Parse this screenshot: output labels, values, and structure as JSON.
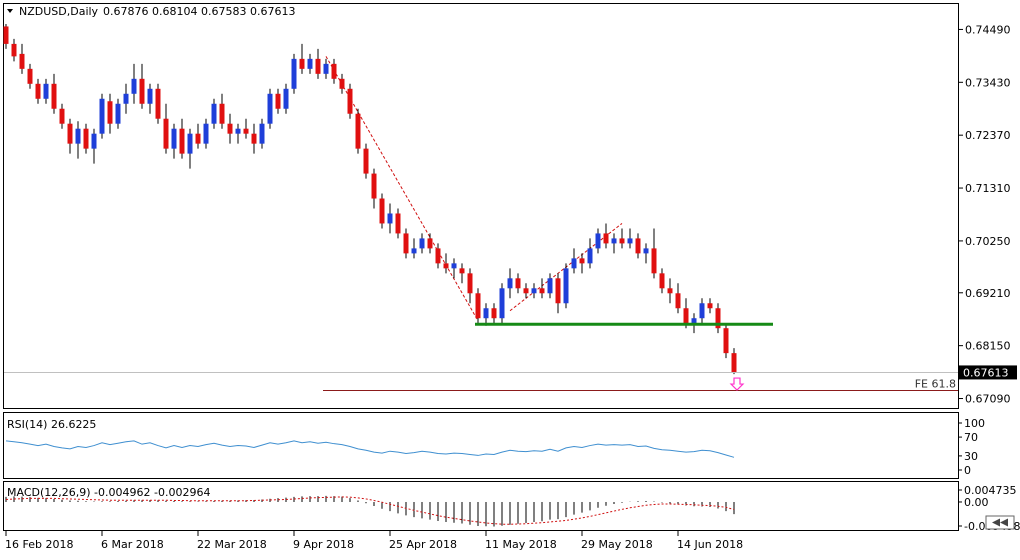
{
  "header": {
    "symbol": "NZDUSD,Daily",
    "ohlc": "0.67876 0.68104 0.67583 0.67613"
  },
  "colors": {
    "bull": "#1f3fd9",
    "bear": "#e01010",
    "wick": "#000000",
    "support": "#168a16",
    "trendline": "#d01010",
    "fe_line": "#8b1a1a",
    "rsi_line": "#3f8fd0",
    "macd_hist": "#000000",
    "macd_signal": "#d01010",
    "arrow": "#ff33cc"
  },
  "price_axis": {
    "ticks": [
      "0.74490",
      "0.73430",
      "0.72370",
      "0.71310",
      "0.70250",
      "0.69210",
      "0.68150",
      "0.67090"
    ],
    "last_price": "0.67613"
  },
  "date_axis": [
    "16 Feb 2018",
    "6 Mar 2018",
    "22 Mar 2018",
    "9 Apr 2018",
    "25 Apr 2018",
    "11 May 2018",
    "29 May 2018",
    "14 Jun 2018"
  ],
  "annotations": {
    "fe_label": "FE 61.8"
  },
  "rsi": {
    "label": "RSI(14) 26.6225",
    "levels": [
      "100",
      "70",
      "30",
      "0"
    ]
  },
  "macd": {
    "label": "MACD(12,26,9) -0.004962 -0.002964",
    "ticks": [
      "0.004735",
      "0.00",
      "-0.009498"
    ]
  },
  "chart_data": {
    "type": "candlestick",
    "symbol": "NZDUSD",
    "timeframe": "Daily",
    "ylim": [
      0.669,
      0.75
    ],
    "support_level": 0.6858,
    "fe_61_8_level": 0.6725,
    "x_tick_labels": [
      "16 Feb 2018",
      "6 Mar 2018",
      "22 Mar 2018",
      "9 Apr 2018",
      "25 Apr 2018",
      "11 May 2018",
      "29 May 2018",
      "14 Jun 2018"
    ],
    "candles": [
      [
        0.7455,
        0.746,
        0.741,
        0.742
      ],
      [
        0.742,
        0.743,
        0.7385,
        0.7395
      ],
      [
        0.74,
        0.742,
        0.736,
        0.737
      ],
      [
        0.737,
        0.738,
        0.733,
        0.734
      ],
      [
        0.734,
        0.735,
        0.73,
        0.731
      ],
      [
        0.731,
        0.735,
        0.73,
        0.734
      ],
      [
        0.734,
        0.736,
        0.728,
        0.729
      ],
      [
        0.729,
        0.73,
        0.725,
        0.726
      ],
      [
        0.726,
        0.727,
        0.72,
        0.722
      ],
      [
        0.722,
        0.7265,
        0.719,
        0.725
      ],
      [
        0.725,
        0.726,
        0.72,
        0.721
      ],
      [
        0.721,
        0.725,
        0.718,
        0.724
      ],
      [
        0.724,
        0.732,
        0.723,
        0.731
      ],
      [
        0.7305,
        0.732,
        0.724,
        0.726
      ],
      [
        0.726,
        0.731,
        0.725,
        0.73
      ],
      [
        0.73,
        0.734,
        0.728,
        0.732
      ],
      [
        0.732,
        0.738,
        0.73,
        0.735
      ],
      [
        0.735,
        0.738,
        0.729,
        0.73
      ],
      [
        0.73,
        0.734,
        0.728,
        0.733
      ],
      [
        0.733,
        0.734,
        0.726,
        0.727
      ],
      [
        0.727,
        0.73,
        0.72,
        0.721
      ],
      [
        0.721,
        0.726,
        0.719,
        0.725
      ],
      [
        0.725,
        0.727,
        0.719,
        0.72
      ],
      [
        0.72,
        0.725,
        0.717,
        0.724
      ],
      [
        0.724,
        0.726,
        0.721,
        0.722
      ],
      [
        0.722,
        0.727,
        0.721,
        0.726
      ],
      [
        0.726,
        0.731,
        0.725,
        0.73
      ],
      [
        0.73,
        0.732,
        0.725,
        0.726
      ],
      [
        0.726,
        0.728,
        0.722,
        0.724
      ],
      [
        0.724,
        0.726,
        0.722,
        0.725
      ],
      [
        0.725,
        0.727,
        0.723,
        0.724
      ],
      [
        0.724,
        0.726,
        0.72,
        0.722
      ],
      [
        0.722,
        0.727,
        0.721,
        0.726
      ],
      [
        0.726,
        0.733,
        0.725,
        0.732
      ],
      [
        0.732,
        0.733,
        0.728,
        0.729
      ],
      [
        0.729,
        0.734,
        0.728,
        0.733
      ],
      [
        0.733,
        0.74,
        0.732,
        0.739
      ],
      [
        0.739,
        0.742,
        0.736,
        0.737
      ],
      [
        0.737,
        0.74,
        0.736,
        0.739
      ],
      [
        0.739,
        0.741,
        0.735,
        0.736
      ],
      [
        0.736,
        0.739,
        0.735,
        0.738
      ],
      [
        0.738,
        0.739,
        0.734,
        0.735
      ],
      [
        0.735,
        0.736,
        0.732,
        0.733
      ],
      [
        0.733,
        0.734,
        0.727,
        0.728
      ],
      [
        0.728,
        0.729,
        0.72,
        0.721
      ],
      [
        0.721,
        0.722,
        0.715,
        0.716
      ],
      [
        0.716,
        0.717,
        0.709,
        0.711
      ],
      [
        0.711,
        0.712,
        0.705,
        0.706
      ],
      [
        0.706,
        0.71,
        0.704,
        0.708
      ],
      [
        0.708,
        0.709,
        0.703,
        0.704
      ],
      [
        0.704,
        0.705,
        0.699,
        0.7
      ],
      [
        0.7,
        0.703,
        0.699,
        0.701
      ],
      [
        0.701,
        0.704,
        0.7,
        0.703
      ],
      [
        0.703,
        0.704,
        0.7,
        0.701
      ],
      [
        0.701,
        0.702,
        0.697,
        0.698
      ],
      [
        0.698,
        0.7,
        0.696,
        0.697
      ],
      [
        0.697,
        0.699,
        0.695,
        0.698
      ],
      [
        0.697,
        0.698,
        0.694,
        0.696
      ],
      [
        0.696,
        0.697,
        0.69,
        0.692
      ],
      [
        0.692,
        0.693,
        0.686,
        0.687
      ],
      [
        0.687,
        0.69,
        0.6855,
        0.689
      ],
      [
        0.689,
        0.69,
        0.686,
        0.687
      ],
      [
        0.687,
        0.694,
        0.686,
        0.693
      ],
      [
        0.693,
        0.697,
        0.691,
        0.695
      ],
      [
        0.695,
        0.696,
        0.692,
        0.693
      ],
      [
        0.693,
        0.694,
        0.691,
        0.692
      ],
      [
        0.692,
        0.694,
        0.691,
        0.693
      ],
      [
        0.693,
        0.695,
        0.691,
        0.692
      ],
      [
        0.692,
        0.696,
        0.691,
        0.695
      ],
      [
        0.695,
        0.696,
        0.688,
        0.69
      ],
      [
        0.69,
        0.698,
        0.689,
        0.697
      ],
      [
        0.697,
        0.701,
        0.696,
        0.699
      ],
      [
        0.699,
        0.7,
        0.696,
        0.698
      ],
      [
        0.698,
        0.703,
        0.697,
        0.701
      ],
      [
        0.701,
        0.705,
        0.7,
        0.704
      ],
      [
        0.704,
        0.706,
        0.701,
        0.702
      ],
      [
        0.702,
        0.704,
        0.7,
        0.703
      ],
      [
        0.703,
        0.705,
        0.701,
        0.702
      ],
      [
        0.702,
        0.705,
        0.701,
        0.703
      ],
      [
        0.703,
        0.704,
        0.699,
        0.7
      ],
      [
        0.7,
        0.702,
        0.698,
        0.701
      ],
      [
        0.701,
        0.705,
        0.695,
        0.696
      ],
      [
        0.696,
        0.697,
        0.692,
        0.693
      ],
      [
        0.693,
        0.695,
        0.69,
        0.692
      ],
      [
        0.692,
        0.694,
        0.688,
        0.689
      ],
      [
        0.689,
        0.691,
        0.685,
        0.686
      ],
      [
        0.686,
        0.688,
        0.684,
        0.687
      ],
      [
        0.687,
        0.691,
        0.686,
        0.69
      ],
      [
        0.69,
        0.691,
        0.688,
        0.689
      ],
      [
        0.689,
        0.69,
        0.684,
        0.685
      ],
      [
        0.685,
        0.686,
        0.679,
        0.68
      ],
      [
        0.68,
        0.681,
        0.6758,
        0.6761
      ]
    ],
    "rsi": {
      "label": "RSI(14)",
      "value": 26.6225,
      "levels": [
        100,
        70,
        30,
        0
      ],
      "values": [
        62,
        60,
        58,
        55,
        52,
        55,
        50,
        47,
        45,
        50,
        48,
        52,
        58,
        54,
        57,
        60,
        62,
        55,
        58,
        52,
        47,
        52,
        48,
        52,
        50,
        54,
        57,
        53,
        50,
        52,
        51,
        48,
        53,
        58,
        55,
        58,
        62,
        58,
        60,
        57,
        59,
        56,
        54,
        50,
        45,
        42,
        38,
        36,
        40,
        38,
        35,
        37,
        40,
        38,
        35,
        34,
        36,
        35,
        33,
        31,
        34,
        33,
        38,
        42,
        40,
        39,
        41,
        40,
        44,
        40,
        47,
        50,
        48,
        52,
        55,
        53,
        54,
        53,
        54,
        50,
        51,
        46,
        43,
        42,
        40,
        38,
        39,
        42,
        41,
        37,
        32,
        27
      ]
    },
    "macd": {
      "label": "MACD(12,26,9)",
      "macd": -0.004962,
      "signal": -0.002964,
      "histogram": [
        0.002,
        0.0022,
        0.0021,
        0.0019,
        0.0016,
        0.0015,
        0.0012,
        0.0009,
        0.0006,
        0.0005,
        0.0003,
        0.0002,
        0.0003,
        0.0003,
        0.0004,
        0.0005,
        0.0007,
        0.0007,
        0.0008,
        0.0007,
        0.0005,
        0.0004,
        0.0003,
        0.0003,
        0.0002,
        0.0003,
        0.0004,
        0.0005,
        0.0005,
        0.0006,
        0.0007,
        0.0008,
        0.001,
        0.0013,
        0.0015,
        0.0017,
        0.002,
        0.0022,
        0.0023,
        0.0023,
        0.0024,
        0.0023,
        0.0021,
        0.0015,
        0.0006,
        -0.0005,
        -0.0016,
        -0.0027,
        -0.0036,
        -0.0045,
        -0.0053,
        -0.006,
        -0.0065,
        -0.007,
        -0.0075,
        -0.0079,
        -0.0082,
        -0.0085,
        -0.009,
        -0.0095,
        -0.0096,
        -0.0097,
        -0.0094,
        -0.009,
        -0.0086,
        -0.0083,
        -0.0079,
        -0.0076,
        -0.007,
        -0.0068,
        -0.006,
        -0.005,
        -0.0042,
        -0.0033,
        -0.0023,
        -0.0015,
        -0.0008,
        -0.0003,
        0.0001,
        0.0003,
        0.0004,
        0.0002,
        -0.0002,
        -0.0006,
        -0.001,
        -0.0014,
        -0.0017,
        -0.0018,
        -0.002,
        -0.0026,
        -0.0036,
        -0.0048
      ],
      "signal_line": [
        0.001,
        0.0012,
        0.0013,
        0.0014,
        0.0014,
        0.0014,
        0.0014,
        0.0013,
        0.0012,
        0.0011,
        0.001,
        0.0009,
        0.0008,
        0.0007,
        0.0007,
        0.0007,
        0.0007,
        0.0007,
        0.0007,
        0.0007,
        0.0007,
        0.0006,
        0.0006,
        0.0005,
        0.0005,
        0.0005,
        0.0005,
        0.0005,
        0.0005,
        0.0005,
        0.0005,
        0.0006,
        0.0007,
        0.0008,
        0.0009,
        0.001,
        0.0012,
        0.0014,
        0.0016,
        0.0017,
        0.0018,
        0.0019,
        0.002,
        0.0019,
        0.0016,
        0.0012,
        0.0006,
        -0.0001,
        -0.0009,
        -0.0017,
        -0.0025,
        -0.0033,
        -0.004,
        -0.0047,
        -0.0054,
        -0.006,
        -0.0065,
        -0.007,
        -0.0075,
        -0.0079,
        -0.0083,
        -0.0086,
        -0.0088,
        -0.0088,
        -0.0087,
        -0.0086,
        -0.0084,
        -0.0082,
        -0.0079,
        -0.0076,
        -0.0073,
        -0.0068,
        -0.0063,
        -0.0057,
        -0.005,
        -0.0043,
        -0.0036,
        -0.0029,
        -0.0023,
        -0.0018,
        -0.0013,
        -0.001,
        -0.0008,
        -0.0008,
        -0.0009,
        -0.001,
        -0.0011,
        -0.0013,
        -0.0014,
        -0.0017,
        -0.0021,
        -0.003
      ]
    }
  }
}
